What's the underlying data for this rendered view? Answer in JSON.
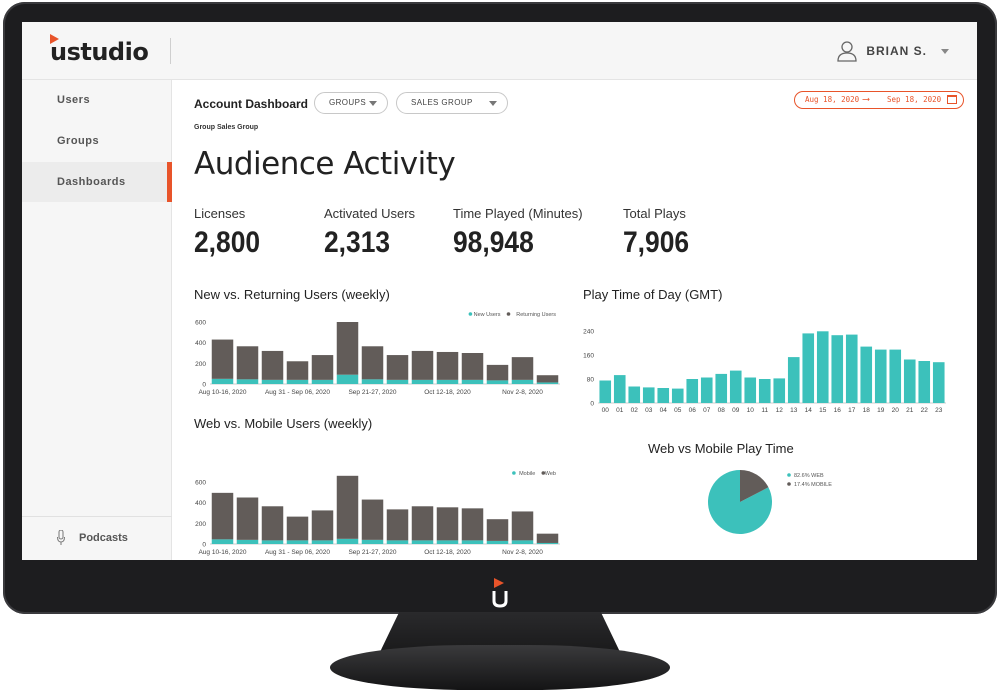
{
  "app": {
    "brand": "ustudio",
    "user_name": "BRIAN S."
  },
  "sidebar": {
    "items": [
      {
        "label": "Users"
      },
      {
        "label": "Groups"
      },
      {
        "label": "Dashboards"
      }
    ],
    "bottom": {
      "label": "Podcasts"
    }
  },
  "header": {
    "title": "Account Dashboard",
    "filter_groups": "GROUPS",
    "filter_sales_group": "SALES GROUP",
    "breadcrumb": "Group Sales Group",
    "date_start": "Aug 18, 2020",
    "date_end": "Sep 18, 2020"
  },
  "page_title": "Audience Activity",
  "stats": [
    {
      "label": "Licenses",
      "value": "2,800"
    },
    {
      "label": "Activated Users",
      "value": "2,313"
    },
    {
      "label": "Time Played (Minutes)",
      "value": "98,948"
    },
    {
      "label": "Total Plays",
      "value": "7,906"
    }
  ],
  "colors": {
    "accent": "#e8542a",
    "teal": "#3cc1bb",
    "gray": "#625c59"
  },
  "chart_data": [
    {
      "type": "bar",
      "title": "New vs. Returning Users (weekly)",
      "stacked": true,
      "ylim": [
        0,
        600
      ],
      "yticks": [
        0,
        200,
        400,
        600
      ],
      "x_tick_labels": [
        "Aug 10-16, 2020",
        "Aug 31 - Sep 06, 2020",
        "Sep 21-27, 2020",
        "Oct 12-18, 2020",
        "Nov 2-8, 2020"
      ],
      "x_tick_positions": [
        0,
        3,
        6,
        9,
        12
      ],
      "legend_placement": "top-right",
      "series": [
        {
          "name": "New Users",
          "color": "#3cc1bb",
          "values": [
            50,
            45,
            40,
            40,
            40,
            90,
            45,
            40,
            40,
            40,
            40,
            35,
            40,
            15
          ]
        },
        {
          "name": "Returning Users",
          "color": "#625c59",
          "values": [
            380,
            320,
            280,
            180,
            240,
            510,
            320,
            240,
            280,
            270,
            260,
            150,
            220,
            70
          ]
        }
      ]
    },
    {
      "type": "bar",
      "title": "Play Time of Day (GMT)",
      "ylim": [
        0,
        270
      ],
      "yticks": [
        0,
        80,
        160,
        240
      ],
      "categories": [
        "00",
        "01",
        "02",
        "03",
        "04",
        "05",
        "06",
        "07",
        "08",
        "09",
        "10",
        "11",
        "12",
        "13",
        "14",
        "15",
        "16",
        "17",
        "18",
        "19",
        "20",
        "21",
        "22",
        "23"
      ],
      "series": [
        {
          "name": "",
          "color": "#3cc1bb",
          "values": [
            75,
            93,
            55,
            52,
            50,
            48,
            80,
            85,
            97,
            108,
            85,
            80,
            82,
            153,
            232,
            239,
            226,
            228,
            188,
            178,
            178,
            145,
            140,
            136
          ]
        }
      ]
    },
    {
      "type": "bar",
      "title": "Web vs. Mobile Users (weekly)",
      "stacked": true,
      "ylim": [
        0,
        600
      ],
      "yticks": [
        0,
        200,
        400,
        600
      ],
      "x_tick_labels": [
        "Aug 10-16, 2020",
        "Aug 31 - Sep 06, 2020",
        "Sep 21-27, 2020",
        "Oct 12-18, 2020",
        "Nov 2-8, 2020"
      ],
      "x_tick_positions": [
        0,
        3,
        6,
        9,
        12
      ],
      "legend_placement": "top-right",
      "series": [
        {
          "name": "Mobile",
          "color": "#3cc1bb",
          "values": [
            45,
            40,
            35,
            35,
            35,
            50,
            40,
            35,
            35,
            35,
            35,
            30,
            35,
            10
          ]
        },
        {
          "name": "Web",
          "color": "#625c59",
          "values": [
            450,
            410,
            330,
            230,
            290,
            610,
            390,
            300,
            330,
            320,
            310,
            210,
            280,
            90
          ]
        }
      ]
    },
    {
      "type": "pie",
      "title": "Web vs Mobile Play Time",
      "legend_placement": "right",
      "slices": [
        {
          "label": "82.6% WEB",
          "value": 82.6,
          "color": "#3cc1bb"
        },
        {
          "label": "17.4% MOBILE",
          "value": 17.4,
          "color": "#625c59"
        }
      ]
    }
  ]
}
